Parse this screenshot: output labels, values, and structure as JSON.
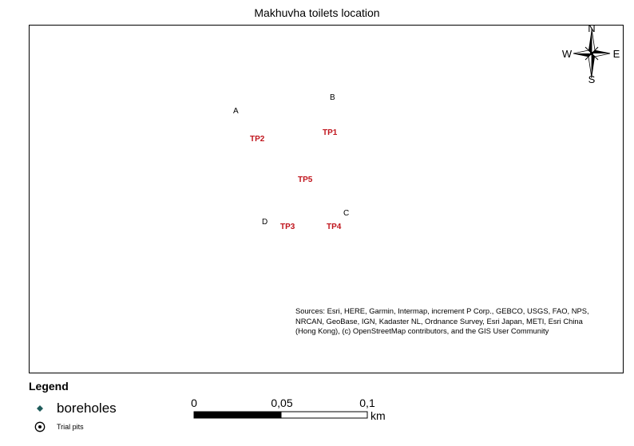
{
  "map": {
    "title": "Makhuvha toilets location",
    "boreholes": [
      {
        "label": "A"
      },
      {
        "label": "B"
      },
      {
        "label": "C"
      },
      {
        "label": "D"
      }
    ],
    "trial_pits": [
      {
        "label": "TP1"
      },
      {
        "label": "TP2"
      },
      {
        "label": "TP3"
      },
      {
        "label": "TP4"
      },
      {
        "label": "TP5"
      }
    ],
    "north_arrow": {
      "n": "N",
      "s": "S",
      "e": "E",
      "w": "W"
    },
    "attribution": "Sources: Esri, HERE, Garmin, Intermap, increment P Corp., GEBCO, USGS, FAO, NPS, NRCAN, GeoBase, IGN, Kadaster NL, Ordnance Survey, Esri Japan, METI, Esri China (Hong Kong), (c) OpenStreetMap contributors, and the GIS User Community"
  },
  "legend": {
    "title": "Legend",
    "items": [
      {
        "label": "boreholes",
        "icon": "borehole-icon"
      },
      {
        "label": "Trial pits",
        "icon": "trial-pit-icon"
      }
    ]
  },
  "scale_bar": {
    "ticks": [
      "0",
      "0,05",
      "0,1"
    ],
    "unit": "km"
  },
  "colors": {
    "trial_pit_label": "#c0141c",
    "borehole_label": "#000000"
  }
}
